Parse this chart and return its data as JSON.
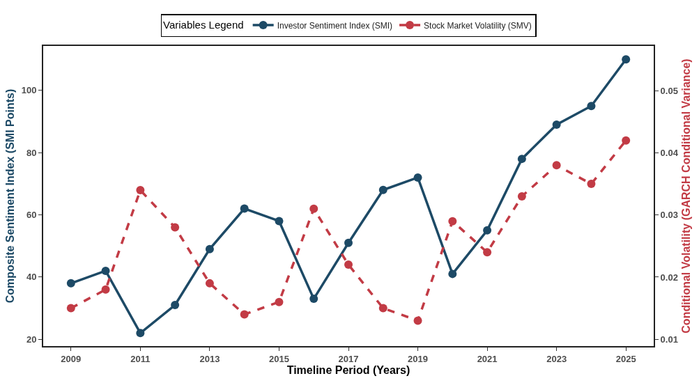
{
  "chart_data": {
    "type": "line",
    "xlabel": "Timeline Period (Years)",
    "ylabel": "Composite Sentiment Index (SMI Points)",
    "y2label": "Conditional Volatility (GARCH Conditional Variance)",
    "legend_title": "Variables Legend",
    "legend": "top",
    "x": [
      2009,
      2010,
      2011,
      2012,
      2013,
      2014,
      2015,
      2016,
      2017,
      2018,
      2019,
      2020,
      2021,
      2022,
      2023,
      2024,
      2025
    ],
    "xlim": [
      2008.2,
      2025.8
    ],
    "xticks": [
      2009,
      2011,
      2013,
      2015,
      2017,
      2019,
      2021,
      2023,
      2025
    ],
    "ylim": [
      17.8,
      114.3
    ],
    "yticks": [
      20,
      40,
      60,
      80,
      100
    ],
    "y2lim": [
      0.0089,
      0.0572
    ],
    "y2ticks": [
      0.01,
      0.02,
      0.03,
      0.04,
      0.05
    ],
    "marker": "circle",
    "series": [
      {
        "name": "Investor Sentiment Index (SMI)",
        "color": "#1d4a66",
        "line_style": "solid",
        "values": [
          38,
          42,
          22,
          31,
          49,
          62,
          58,
          33,
          51,
          68,
          72,
          41,
          55,
          78,
          89,
          95,
          110
        ]
      },
      {
        "name": "Stock Market Volatility (SMV)",
        "color": "#c23b45",
        "line_style": "dashed",
        "axis": "y2",
        "values": [
          0.015,
          0.018,
          0.034,
          0.028,
          0.019,
          0.014,
          0.016,
          0.031,
          0.022,
          0.015,
          0.013,
          0.029,
          0.024,
          0.033,
          0.038,
          0.035,
          0.042
        ]
      }
    ]
  }
}
